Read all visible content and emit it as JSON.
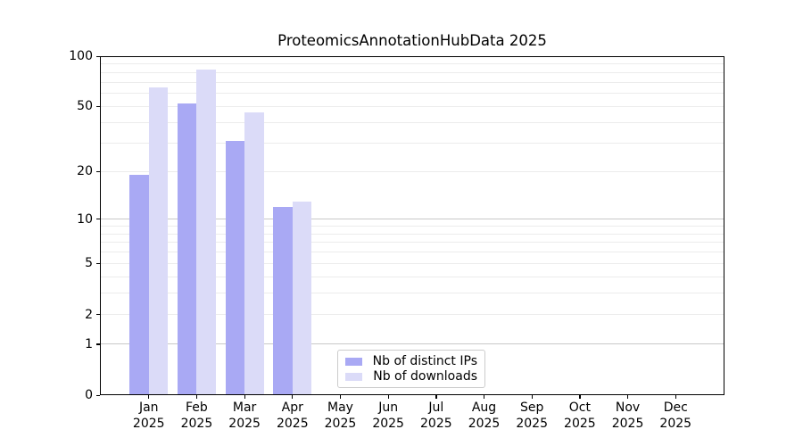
{
  "title": "ProteomicsAnnotationHubData 2025",
  "chart_data": {
    "type": "bar",
    "title": "ProteomicsAnnotationHubData 2025",
    "categories": [
      "Jan 2025",
      "Feb 2025",
      "Mar 2025",
      "Apr 2025",
      "May 2025",
      "Jun 2025",
      "Jul 2025",
      "Aug 2025",
      "Sep 2025",
      "Oct 2025",
      "Nov 2025",
      "Dec 2025"
    ],
    "series": [
      {
        "name": "Nb of distinct IPs",
        "color": "#a9a9f4",
        "values": [
          19,
          52,
          31,
          12,
          null,
          null,
          null,
          null,
          null,
          null,
          null,
          null
        ]
      },
      {
        "name": "Nb of downloads",
        "color": "#dbdbf8",
        "values": [
          65,
          83,
          46,
          13,
          null,
          null,
          null,
          null,
          null,
          null,
          null,
          null
        ]
      }
    ],
    "yscale": "log10(1+x)",
    "yticks": [
      0,
      1,
      2,
      5,
      10,
      20,
      50,
      100
    ],
    "ylim": [
      0,
      100
    ],
    "major_gridlines": [
      1,
      10,
      100
    ],
    "minor_gridlines": [
      2,
      3,
      4,
      5,
      6,
      7,
      8,
      9,
      20,
      30,
      40,
      50,
      60,
      70,
      80,
      90
    ],
    "grid": "horizontal",
    "legend_position": "inside lower center",
    "xlabel": "",
    "ylabel": ""
  },
  "colors": {
    "bar_distinct_ips": "#a9a9f4",
    "bar_downloads": "#dbdbf8",
    "gridline_minor": "#ececec",
    "gridline_major": "#c9c9c9",
    "axis": "#000000",
    "legend_border": "#cccccc",
    "background": "#ffffff"
  }
}
